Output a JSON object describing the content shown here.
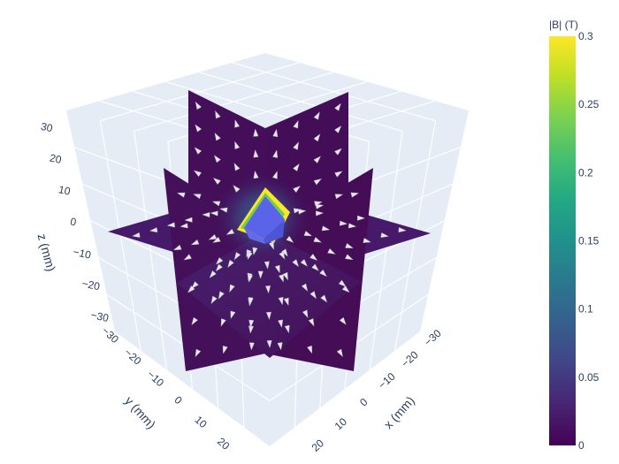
{
  "chart_data": {
    "type": "3d-slices-with-cones",
    "colorscale": "viridis",
    "colorbar": {
      "title": "|B| (T)",
      "range": [
        0,
        0.3
      ],
      "ticks": [
        "0",
        "0.05",
        "0.1",
        "0.15",
        "0.2",
        "0.25",
        "0.3"
      ]
    },
    "axes": {
      "x": {
        "title": "x (mm)",
        "range": [
          -30,
          30
        ],
        "ticks": [
          "−30",
          "−20",
          "−10",
          "0",
          "10",
          "20"
        ]
      },
      "y": {
        "title": "y (mm)",
        "range": [
          -30,
          30
        ],
        "ticks": [
          "−30",
          "−20",
          "−10",
          "0",
          "10",
          "20"
        ]
      },
      "z": {
        "title": "z (mm)",
        "range": [
          -30,
          30
        ],
        "ticks": [
          "−30",
          "−20",
          "−10",
          "0",
          "10",
          "20",
          "30"
        ]
      }
    },
    "slices": [
      "x=0",
      "y=0",
      "z=0"
    ],
    "magnet": {
      "shape": "cuboid",
      "color": "#5b63e8"
    },
    "field_peak_T": 0.3
  }
}
